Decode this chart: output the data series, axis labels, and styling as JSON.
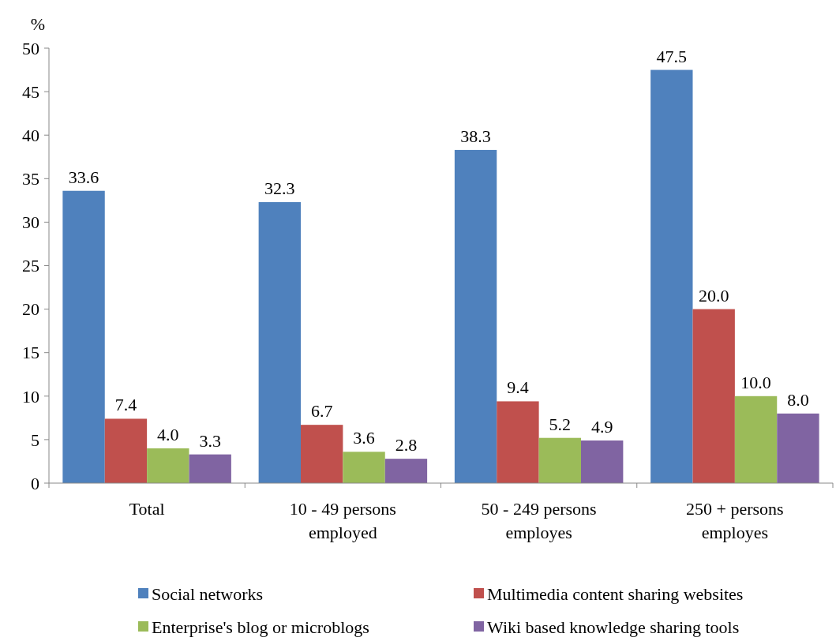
{
  "chart_data": {
    "type": "bar",
    "ylabel": "%",
    "categories": [
      "Total",
      "10 - 49 persons employed",
      "50 - 249 persons employes",
      "250 + persons employes"
    ],
    "series": [
      {
        "name": "Social networks",
        "color": "#4f81bd",
        "values": [
          33.6,
          32.3,
          38.3,
          47.5
        ],
        "value_labels": [
          "33.6",
          "32.3",
          "38.3",
          "47.5"
        ]
      },
      {
        "name": "Multimedia content sharing websites",
        "color": "#c0504d",
        "values": [
          7.4,
          6.7,
          9.4,
          20
        ],
        "value_labels": [
          "7.4",
          "6.7",
          "9.4",
          "20.0"
        ]
      },
      {
        "name": "Enterprise's blog or microblogs",
        "color": "#9bbb59",
        "values": [
          4,
          3.6,
          5.2,
          10
        ],
        "value_labels": [
          "4.0",
          "3.6",
          "5.2",
          "10.0"
        ]
      },
      {
        "name": "Wiki based knowledge sharing tools",
        "color": "#8064a2",
        "values": [
          3.3,
          2.8,
          4.9,
          8
        ],
        "value_labels": [
          "3.3",
          "2.8",
          "4.9",
          "8.0"
        ]
      }
    ],
    "ylim": [
      0,
      50
    ],
    "yticks": [
      0,
      5,
      10,
      15,
      20,
      25,
      30,
      35,
      40,
      45,
      50
    ],
    "grid": false,
    "legend": "bottom"
  }
}
